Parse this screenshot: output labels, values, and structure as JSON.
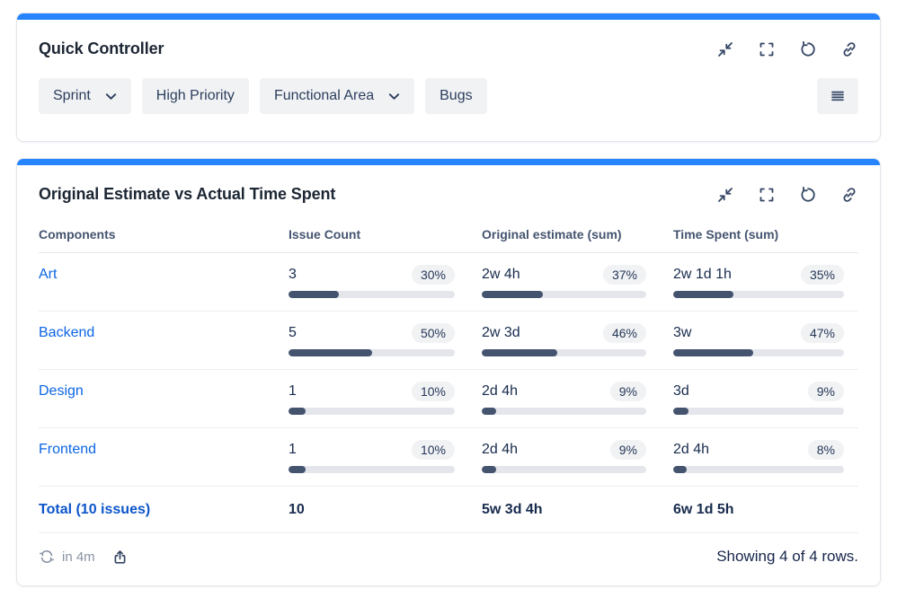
{
  "colors": {
    "accent_bar": "#2684FF",
    "link": "#0C66E4",
    "total_link": "#0C55CA",
    "bar_fill": "#44546F",
    "bar_track": "#E4E6EB",
    "chip_bg": "#F1F2F4",
    "header_text": "#44546F"
  },
  "icons": {
    "window": [
      "collapse-icon",
      "fullscreen-icon",
      "undo-icon",
      "link-icon"
    ],
    "filter_bar": [
      "chevron-down-icon",
      "table-menu-icon"
    ],
    "footer": [
      "refresh-icon",
      "share-icon"
    ]
  },
  "panel1": {
    "title": "Quick Controller",
    "filters": [
      {
        "label": "Sprint",
        "dropdown": true
      },
      {
        "label": "High Priority",
        "dropdown": false
      },
      {
        "label": "Functional Area",
        "dropdown": true
      },
      {
        "label": "Bugs",
        "dropdown": false
      }
    ]
  },
  "panel2": {
    "title": "Original Estimate vs Actual Time Spent",
    "table": {
      "columns": [
        "Components",
        "Issue Count",
        "Original estimate (sum)",
        "Time Spent (sum)"
      ],
      "rows": [
        {
          "component": "Art",
          "issue_count": "3",
          "issue_pct": 30,
          "estimate": "2w 4h",
          "estimate_pct": 37,
          "spent": "2w 1d 1h",
          "spent_pct": 35
        },
        {
          "component": "Backend",
          "issue_count": "5",
          "issue_pct": 50,
          "estimate": "2w 3d",
          "estimate_pct": 46,
          "spent": "3w",
          "spent_pct": 47
        },
        {
          "component": "Design",
          "issue_count": "1",
          "issue_pct": 10,
          "estimate": "2d 4h",
          "estimate_pct": 9,
          "spent": "3d",
          "spent_pct": 9
        },
        {
          "component": "Frontend",
          "issue_count": "1",
          "issue_pct": 10,
          "estimate": "2d 4h",
          "estimate_pct": 9,
          "spent": "2d 4h",
          "spent_pct": 8
        }
      ],
      "total": {
        "label": "Total (10 issues)",
        "issue_count": "10",
        "estimate": "5w 3d 4h",
        "spent": "6w 1d 5h"
      }
    },
    "footer": {
      "refresh_in": "in 4m",
      "showing": "Showing 4 of 4 rows."
    }
  }
}
